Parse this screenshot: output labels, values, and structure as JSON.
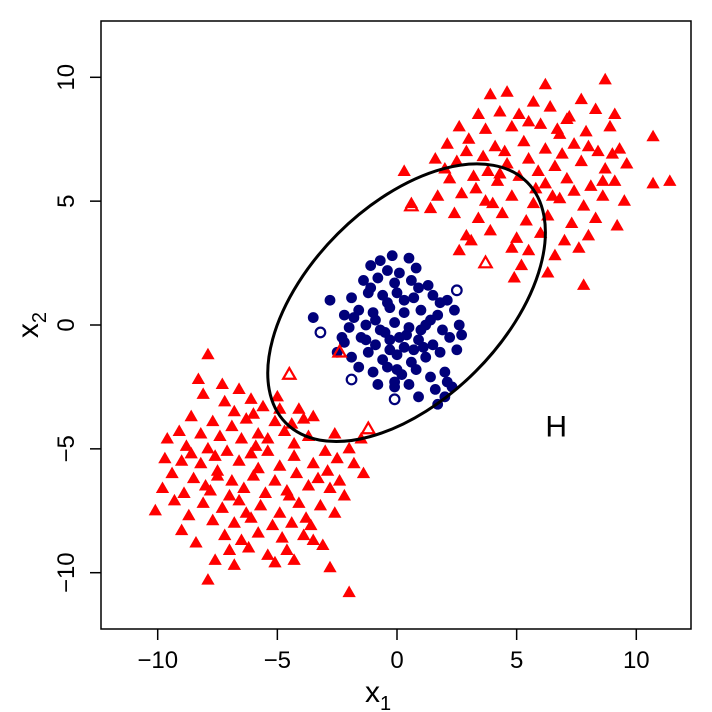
{
  "chart_data": {
    "type": "scatter",
    "title": "",
    "xlabel": "x",
    "xlabel_sub": "1",
    "ylabel": "x",
    "ylabel_sub": "2",
    "xlim": [
      -12.5,
      12.5
    ],
    "ylim": [
      -12.5,
      12.5
    ],
    "xticks": [
      -10,
      -5,
      0,
      5,
      10
    ],
    "yticks": [
      -10,
      -5,
      0,
      5,
      10
    ],
    "xtick_labels": [
      "−10",
      "−5",
      "0",
      "5",
      "10"
    ],
    "ytick_labels": [
      "−10",
      "−5",
      "0",
      "5",
      "10"
    ],
    "grid": false,
    "legend": "none",
    "colors": {
      "triangle": "#ff0000",
      "circle": "#00007a",
      "ellipse": "#000000"
    },
    "annotation": {
      "text": "H",
      "x": 6.2,
      "y": -4.1
    },
    "ellipse": {
      "center": [
        0.4,
        0.9
      ],
      "rx": 7.0,
      "ry": 4.0,
      "angle_deg": -45
    },
    "series": [
      {
        "marker": "filled-triangle",
        "points": [
          [
            -7.9,
            -1.2
          ],
          [
            -8.3,
            -2.2
          ],
          [
            -7.3,
            -2.4
          ],
          [
            -6.6,
            -2.6
          ],
          [
            -8.1,
            -2.8
          ],
          [
            -6.1,
            -3.0
          ],
          [
            -7.2,
            -3.1
          ],
          [
            -6.8,
            -3.5
          ],
          [
            -5.6,
            -3.3
          ],
          [
            -4.9,
            -3.4
          ],
          [
            -4.1,
            -3.4
          ],
          [
            -8.6,
            -3.7
          ],
          [
            -7.7,
            -3.9
          ],
          [
            -6.3,
            -3.8
          ],
          [
            -5.1,
            -3.9
          ],
          [
            -4.4,
            -4.0
          ],
          [
            -3.5,
            -3.7
          ],
          [
            -9.1,
            -4.3
          ],
          [
            -8.2,
            -4.4
          ],
          [
            -7.4,
            -4.5
          ],
          [
            -6.5,
            -4.6
          ],
          [
            -5.8,
            -4.4
          ],
          [
            -4.7,
            -4.3
          ],
          [
            -3.7,
            -4.5
          ],
          [
            -2.6,
            -4.4
          ],
          [
            -9.6,
            -4.6
          ],
          [
            -8.8,
            -4.9
          ],
          [
            -7.9,
            -5.0
          ],
          [
            -7.1,
            -5.1
          ],
          [
            -6.1,
            -5.2
          ],
          [
            -5.4,
            -5.1
          ],
          [
            -4.3,
            -5.3
          ],
          [
            -3.0,
            -5.1
          ],
          [
            -2.0,
            -5.0
          ],
          [
            -9.0,
            -5.5
          ],
          [
            -8.2,
            -5.6
          ],
          [
            -6.6,
            -5.5
          ],
          [
            -5.8,
            -5.8
          ],
          [
            -4.9,
            -5.7
          ],
          [
            -3.5,
            -5.6
          ],
          [
            -2.5,
            -5.4
          ],
          [
            -1.8,
            -5.6
          ],
          [
            -9.4,
            -6.0
          ],
          [
            -8.5,
            -6.2
          ],
          [
            -7.5,
            -6.1
          ],
          [
            -6.9,
            -6.3
          ],
          [
            -6.0,
            -6.1
          ],
          [
            -5.1,
            -6.3
          ],
          [
            -4.2,
            -6.0
          ],
          [
            -3.3,
            -6.2
          ],
          [
            -2.4,
            -6.3
          ],
          [
            -1.4,
            -6.0
          ],
          [
            -9.8,
            -6.6
          ],
          [
            -8.9,
            -6.8
          ],
          [
            -7.8,
            -6.7
          ],
          [
            -7.0,
            -6.9
          ],
          [
            -6.4,
            -6.6
          ],
          [
            -5.5,
            -6.8
          ],
          [
            -4.6,
            -6.7
          ],
          [
            -3.7,
            -6.5
          ],
          [
            -2.8,
            -6.6
          ],
          [
            -2.2,
            -6.9
          ],
          [
            -9.3,
            -7.1
          ],
          [
            -8.1,
            -7.2
          ],
          [
            -7.3,
            -7.4
          ],
          [
            -6.6,
            -7.1
          ],
          [
            -5.7,
            -7.3
          ],
          [
            -4.9,
            -7.6
          ],
          [
            -4.1,
            -7.2
          ],
          [
            -3.2,
            -7.3
          ],
          [
            -2.6,
            -7.6
          ],
          [
            -10.1,
            -7.5
          ],
          [
            -8.7,
            -7.7
          ],
          [
            -7.7,
            -7.9
          ],
          [
            -6.8,
            -8.0
          ],
          [
            -6.1,
            -7.8
          ],
          [
            -5.2,
            -8.1
          ],
          [
            -4.4,
            -8.0
          ],
          [
            -3.6,
            -8.1
          ],
          [
            -9.0,
            -8.3
          ],
          [
            -7.2,
            -8.5
          ],
          [
            -6.5,
            -8.7
          ],
          [
            -5.8,
            -8.4
          ],
          [
            -4.8,
            -8.6
          ],
          [
            -3.9,
            -8.5
          ],
          [
            -8.4,
            -8.8
          ],
          [
            -7.0,
            -9.1
          ],
          [
            -6.2,
            -9.0
          ],
          [
            -5.4,
            -9.3
          ],
          [
            -4.6,
            -9.1
          ],
          [
            -3.1,
            -8.9
          ],
          [
            -7.6,
            -9.5
          ],
          [
            -6.8,
            -9.7
          ],
          [
            -5.1,
            -9.6
          ],
          [
            -4.3,
            -9.5
          ],
          [
            -2.8,
            -9.8
          ],
          [
            -7.9,
            -10.3
          ],
          [
            -2.0,
            -10.8
          ],
          [
            -5.9,
            -4.9
          ],
          [
            -7.6,
            -5.3
          ],
          [
            -8.6,
            -5.2
          ],
          [
            -6.3,
            -7.6
          ],
          [
            -3.9,
            -3.8
          ],
          [
            -4.5,
            -6.9
          ],
          [
            -5.4,
            -4.6
          ],
          [
            -6.9,
            -4.1
          ],
          [
            -2.9,
            -5.9
          ],
          [
            -3.5,
            -8.7
          ],
          [
            -8.0,
            -6.5
          ],
          [
            -9.7,
            -5.4
          ],
          [
            -5.0,
            -2.9
          ],
          [
            -4.3,
            -4.8
          ],
          [
            -1.5,
            -4.6
          ],
          [
            -7.5,
            -5.9
          ],
          [
            -6.0,
            -3.6
          ],
          [
            -3.8,
            -7.8
          ],
          [
            8.7,
            9.9
          ],
          [
            6.2,
            9.7
          ],
          [
            3.9,
            9.3
          ],
          [
            4.6,
            9.4
          ],
          [
            5.7,
            9.0
          ],
          [
            7.7,
            9.1
          ],
          [
            3.4,
            8.5
          ],
          [
            4.3,
            8.6
          ],
          [
            5.1,
            8.5
          ],
          [
            6.4,
            8.8
          ],
          [
            7.2,
            8.4
          ],
          [
            8.3,
            8.7
          ],
          [
            9.1,
            8.5
          ],
          [
            2.6,
            8.0
          ],
          [
            3.7,
            7.9
          ],
          [
            4.8,
            8.0
          ],
          [
            6.0,
            8.1
          ],
          [
            6.8,
            7.7
          ],
          [
            7.9,
            7.8
          ],
          [
            8.9,
            8.0
          ],
          [
            2.1,
            7.3
          ],
          [
            3.0,
            7.5
          ],
          [
            4.1,
            7.2
          ],
          [
            5.3,
            7.4
          ],
          [
            6.2,
            7.1
          ],
          [
            7.4,
            7.3
          ],
          [
            8.4,
            7.0
          ],
          [
            9.3,
            7.1
          ],
          [
            10.7,
            7.6
          ],
          [
            1.6,
            6.7
          ],
          [
            2.5,
            6.6
          ],
          [
            3.6,
            6.8
          ],
          [
            4.6,
            6.5
          ],
          [
            5.5,
            6.7
          ],
          [
            6.6,
            6.4
          ],
          [
            7.7,
            6.6
          ],
          [
            8.7,
            6.3
          ],
          [
            9.6,
            6.5
          ],
          [
            2.2,
            5.9
          ],
          [
            3.2,
            6.0
          ],
          [
            4.2,
            5.8
          ],
          [
            5.1,
            6.0
          ],
          [
            6.2,
            5.7
          ],
          [
            7.1,
            5.9
          ],
          [
            8.1,
            5.6
          ],
          [
            9.1,
            5.8
          ],
          [
            11.4,
            5.8
          ],
          [
            1.7,
            5.2
          ],
          [
            2.7,
            5.3
          ],
          [
            3.7,
            5.0
          ],
          [
            4.8,
            5.2
          ],
          [
            5.7,
            4.9
          ],
          [
            6.8,
            5.1
          ],
          [
            7.8,
            4.8
          ],
          [
            8.6,
            5.2
          ],
          [
            9.5,
            5.0
          ],
          [
            10.7,
            5.7
          ],
          [
            0.3,
            6.2
          ],
          [
            0.6,
            4.9
          ],
          [
            1.4,
            4.7
          ],
          [
            2.4,
            4.5
          ],
          [
            3.4,
            4.3
          ],
          [
            4.4,
            4.5
          ],
          [
            5.4,
            4.2
          ],
          [
            6.3,
            4.4
          ],
          [
            7.3,
            4.1
          ],
          [
            8.3,
            4.3
          ],
          [
            9.2,
            4.0
          ],
          [
            2.9,
            3.6
          ],
          [
            3.9,
            3.8
          ],
          [
            5.0,
            3.5
          ],
          [
            6.0,
            3.7
          ],
          [
            7.0,
            3.4
          ],
          [
            8.0,
            3.6
          ],
          [
            2.6,
            3.0
          ],
          [
            5.5,
            3.0
          ],
          [
            6.6,
            2.8
          ],
          [
            7.6,
            3.1
          ],
          [
            5.2,
            2.4
          ],
          [
            6.3,
            2.1
          ],
          [
            4.9,
            1.9
          ],
          [
            7.8,
            1.6
          ],
          [
            3.1,
            3.4
          ],
          [
            4.3,
            6.1
          ],
          [
            5.9,
            6.2
          ],
          [
            7.4,
            5.4
          ],
          [
            6.9,
            6.9
          ],
          [
            3.3,
            5.5
          ],
          [
            4.5,
            7.0
          ],
          [
            8.0,
            7.2
          ],
          [
            5.5,
            8.2
          ],
          [
            2.9,
            7.0
          ],
          [
            8.6,
            5.8
          ],
          [
            6.5,
            5.2
          ],
          [
            4.0,
            4.9
          ],
          [
            7.1,
            8.3
          ],
          [
            3.8,
            6.2
          ],
          [
            5.8,
            5.5
          ],
          [
            9.0,
            6.9
          ],
          [
            4.8,
            3.1
          ],
          [
            6.7,
            7.9
          ],
          [
            2.0,
            6.3
          ]
        ]
      },
      {
        "marker": "filled-circle",
        "points": [
          [
            -0.7,
            2.6
          ],
          [
            -0.2,
            2.8
          ],
          [
            0.5,
            2.7
          ],
          [
            -1.1,
            2.4
          ],
          [
            -0.4,
            2.2
          ],
          [
            0.1,
            2.1
          ],
          [
            0.8,
            2.3
          ],
          [
            -1.4,
            1.8
          ],
          [
            -0.8,
            1.9
          ],
          [
            -0.1,
            1.7
          ],
          [
            0.6,
            1.8
          ],
          [
            1.3,
            1.6
          ],
          [
            -1.9,
            1.1
          ],
          [
            -1.2,
            1.3
          ],
          [
            -0.6,
            1.2
          ],
          [
            0.0,
            1.3
          ],
          [
            0.7,
            1.1
          ],
          [
            1.5,
            1.2
          ],
          [
            2.1,
            1.0
          ],
          [
            -2.2,
            0.4
          ],
          [
            -1.6,
            0.6
          ],
          [
            -1.0,
            0.5
          ],
          [
            -0.3,
            0.7
          ],
          [
            0.3,
            0.5
          ],
          [
            1.0,
            0.6
          ],
          [
            1.7,
            0.4
          ],
          [
            2.4,
            0.6
          ],
          [
            -3.5,
            0.3
          ],
          [
            -2.8,
            1.0
          ],
          [
            -2.0,
            -0.1
          ],
          [
            -1.3,
            0.0
          ],
          [
            -0.7,
            -0.2
          ],
          [
            -0.1,
            0.1
          ],
          [
            0.5,
            -0.1
          ],
          [
            1.2,
            0.0
          ],
          [
            1.9,
            -0.2
          ],
          [
            2.6,
            0.0
          ],
          [
            -2.2,
            -0.7
          ],
          [
            -1.5,
            -0.5
          ],
          [
            -0.9,
            -0.8
          ],
          [
            -0.3,
            -0.6
          ],
          [
            0.3,
            -0.9
          ],
          [
            0.9,
            -0.6
          ],
          [
            1.5,
            -0.8
          ],
          [
            2.2,
            -0.5
          ],
          [
            2.7,
            -0.4
          ],
          [
            -1.9,
            -1.3
          ],
          [
            -1.2,
            -1.1
          ],
          [
            -0.6,
            -1.4
          ],
          [
            0.0,
            -1.2
          ],
          [
            0.6,
            -1.5
          ],
          [
            1.2,
            -1.3
          ],
          [
            1.8,
            -1.1
          ],
          [
            2.5,
            -1.0
          ],
          [
            -1.0,
            -1.9
          ],
          [
            -0.4,
            -1.7
          ],
          [
            0.2,
            -2.0
          ],
          [
            0.8,
            -1.8
          ],
          [
            1.4,
            -2.1
          ],
          [
            2.0,
            -1.9
          ],
          [
            -0.8,
            -2.4
          ],
          [
            -0.1,
            -2.5
          ],
          [
            0.5,
            -2.4
          ],
          [
            1.6,
            -2.6
          ],
          [
            -0.3,
            -1.0
          ],
          [
            0.4,
            -0.4
          ],
          [
            -0.9,
            0.2
          ],
          [
            1.1,
            -0.9
          ],
          [
            0.1,
            -0.5
          ],
          [
            -1.6,
            -1.7
          ],
          [
            0.9,
            1.5
          ],
          [
            -0.4,
            0.9
          ],
          [
            0.3,
            1.0
          ],
          [
            1.8,
            0.9
          ],
          [
            -2.5,
            -1.1
          ],
          [
            -1.8,
            0.3
          ],
          [
            -0.5,
            -0.3
          ],
          [
            1.4,
            0.2
          ],
          [
            0.0,
            -1.8
          ],
          [
            2.1,
            -2.3
          ],
          [
            1.7,
            -3.2
          ],
          [
            2.0,
            -2.9
          ],
          [
            2.3,
            -2.5
          ],
          [
            -0.1,
            -2.3
          ],
          [
            1.0,
            -0.2
          ],
          [
            -1.3,
            -0.6
          ],
          [
            0.7,
            -1.0
          ],
          [
            -2.3,
            -0.5
          ],
          [
            0.9,
            -2.9
          ],
          [
            -1.1,
            1.5
          ]
        ]
      },
      {
        "marker": "open-triangle",
        "points": [
          [
            0.6,
            4.8
          ],
          [
            3.7,
            2.5
          ],
          [
            -2.4,
            -1.1
          ],
          [
            -4.5,
            -2.0
          ],
          [
            -1.2,
            -4.2
          ]
        ]
      },
      {
        "marker": "open-circle",
        "points": [
          [
            2.5,
            1.4
          ],
          [
            -3.2,
            -0.3
          ],
          [
            -1.9,
            -2.2
          ],
          [
            -0.1,
            -3.0
          ]
        ]
      }
    ]
  }
}
